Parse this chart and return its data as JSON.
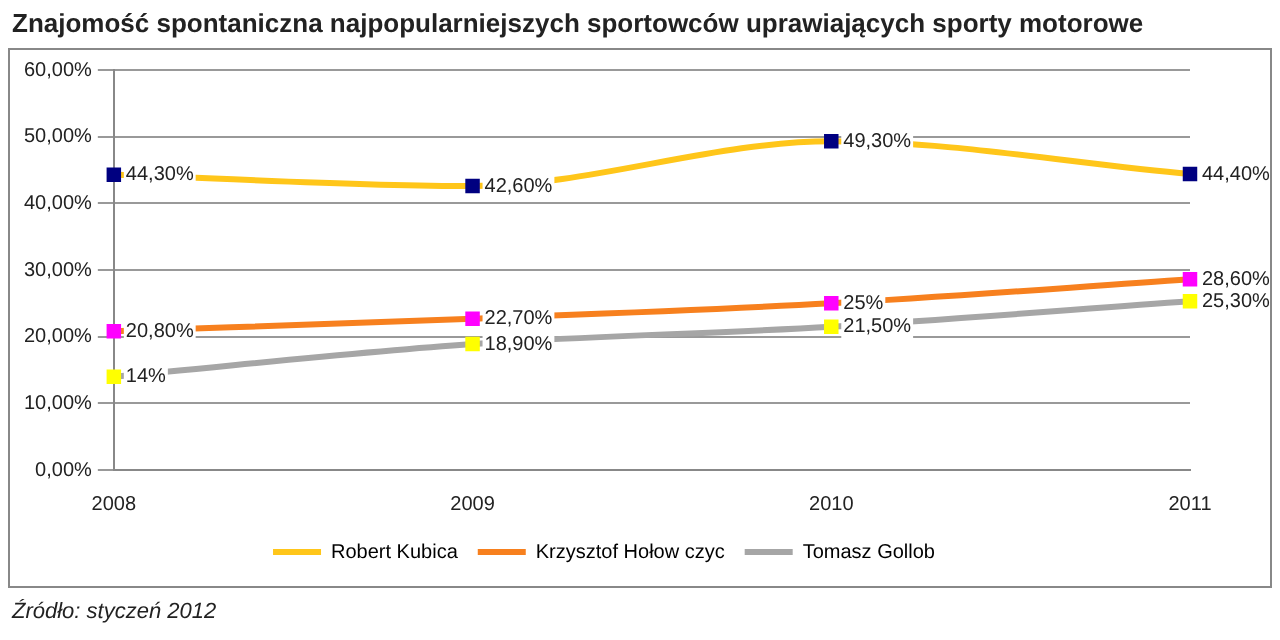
{
  "chart_data": {
    "type": "line",
    "title": "Znajomość spontaniczna najpopularniejszych sportowców uprawiających sporty motorowe",
    "categories": [
      "2008",
      "2009",
      "2010",
      "2011"
    ],
    "series": [
      {
        "name": "Robert Kubica",
        "color": "#ffc61a",
        "colors": [
          "#000080",
          "#000080",
          "#000080",
          "#000080"
        ],
        "values": [
          44.3,
          42.6,
          49.3,
          44.4
        ],
        "value_labels": [
          "44,30%",
          "42,60%",
          "49,30%",
          "44,40%"
        ]
      },
      {
        "name": "Krzysztof Hołow czyc",
        "color": "#f7801e",
        "colors": [
          "#ff00ff",
          "#ff00ff",
          "#ff00ff",
          "#ff00ff"
        ],
        "values": [
          20.8,
          22.7,
          25,
          28.6
        ],
        "value_labels": [
          "20,80%",
          "22,70%",
          "25%",
          "28,60%"
        ]
      },
      {
        "name": "Tomasz Gollob",
        "color": "#a6a6a6",
        "colors": [
          "#ffff00",
          "#ffff00",
          "#ffff00",
          "#ffff00"
        ],
        "values": [
          14,
          18.9,
          21.5,
          25.3
        ],
        "value_labels": [
          "14%",
          "18,90%",
          "21,50%",
          "25,30%"
        ]
      }
    ],
    "ylim": [
      0,
      60
    ],
    "yticks": [
      {
        "value": 0,
        "label": "0,00%"
      },
      {
        "value": 10,
        "label": "10,00%"
      },
      {
        "value": 20,
        "label": "20,00%"
      },
      {
        "value": 30,
        "label": "30,00%"
      },
      {
        "value": 40,
        "label": "40,00%"
      },
      {
        "value": 50,
        "label": "50,00%"
      },
      {
        "value": 60,
        "label": "60,00%"
      }
    ],
    "grid": "y",
    "legend": "bottom",
    "marker": "square",
    "annotations": [
      "Źródło: styczeń 2012"
    ]
  }
}
